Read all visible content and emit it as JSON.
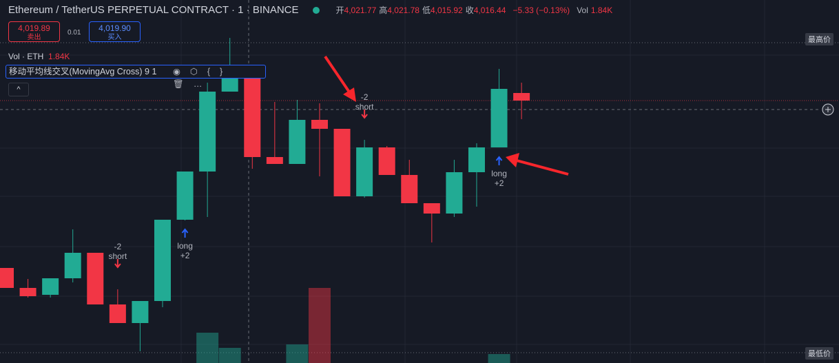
{
  "header": {
    "symbol": "Ethereum / TetherUS PERPETUAL CONTRACT · 1 · BINANCE",
    "ohlc": [
      {
        "label": "开",
        "value": "4,021.77"
      },
      {
        "label": "高",
        "value": "4,021.78"
      },
      {
        "label": "低",
        "value": "4,015.92"
      },
      {
        "label": "收",
        "value": "4,016.44"
      }
    ],
    "change": "−5.33 (−0.13%)",
    "vol_label": "Vol",
    "vol_value": "1.84K"
  },
  "trade": {
    "sell_price": "4,019.89",
    "sell_label": "卖出",
    "spread": "0.01",
    "buy_price": "4,019.90",
    "buy_label": "买入"
  },
  "volume_legend": {
    "label": "Vol · ETH",
    "value": "1.84K"
  },
  "indicator": {
    "name": "移动平均线交叉(MovingAvg Cross)",
    "params": "9 1"
  },
  "price_tags": {
    "high": "最高价",
    "low": "最低价"
  },
  "chart_data": {
    "type": "candlestick",
    "ylim": [
      3826,
      4089.5
    ],
    "vlim": [
      0,
      10
    ],
    "open": [
      3895,
      3880.5,
      3875.5,
      3887.5,
      3906,
      3868.5,
      3855,
      3871,
      3930,
      3965,
      4023,
      4032.5,
      3975.5,
      3970.5,
      4002.5,
      3996,
      3947,
      3982.5,
      3962.5,
      3942,
      3934.5,
      3964.5,
      3982.5,
      4022
    ],
    "high": [
      3895,
      3887,
      3887.5,
      3923,
      3906,
      3879.5,
      3871,
      3930,
      3965,
      4029.5,
      4062,
      4032.5,
      4015.5,
      4017,
      4014.5,
      3996,
      3988,
      3983.5,
      3973.5,
      3942,
      3973.5,
      3985.5,
      4039.5,
      4029.5
    ],
    "low": [
      3880.5,
      3873.5,
      3873.5,
      3884.5,
      3868.5,
      3855,
      3834.5,
      3866.5,
      3929.5,
      3932,
      4023,
      3967,
      3970.5,
      3970.5,
      3961.5,
      3947,
      3946,
      3962.5,
      3942,
      3913.5,
      3932,
      3939.5,
      3982.5,
      4003
    ],
    "close": [
      3880.5,
      3874.5,
      3887.5,
      3906,
      3868.5,
      3855,
      3871,
      3930,
      3965,
      4023,
      4032.5,
      3975.5,
      3970.5,
      4002.5,
      3996,
      3947,
      3982.5,
      3962.5,
      3942,
      3934.5,
      3964.5,
      3982.5,
      4025,
      4016.5
    ],
    "volume": [
      null,
      null,
      null,
      null,
      null,
      null,
      null,
      null,
      null,
      2.2,
      1.1,
      null,
      null,
      1.35,
      5.45,
      null,
      null,
      null,
      null,
      null,
      null,
      null,
      0.65,
      null
    ],
    "up_color": "#22ab94",
    "down_color": "#f23645",
    "signals": [
      {
        "index": 5,
        "side": "short",
        "lines": [
          "-2",
          "short"
        ]
      },
      {
        "index": 8,
        "side": "long",
        "lines": [
          "long",
          "+2"
        ]
      },
      {
        "index": 16,
        "side": "short",
        "lines": [
          "-2",
          "short"
        ]
      },
      {
        "index": 22,
        "side": "long",
        "lines": [
          "long",
          "+2"
        ]
      }
    ]
  }
}
